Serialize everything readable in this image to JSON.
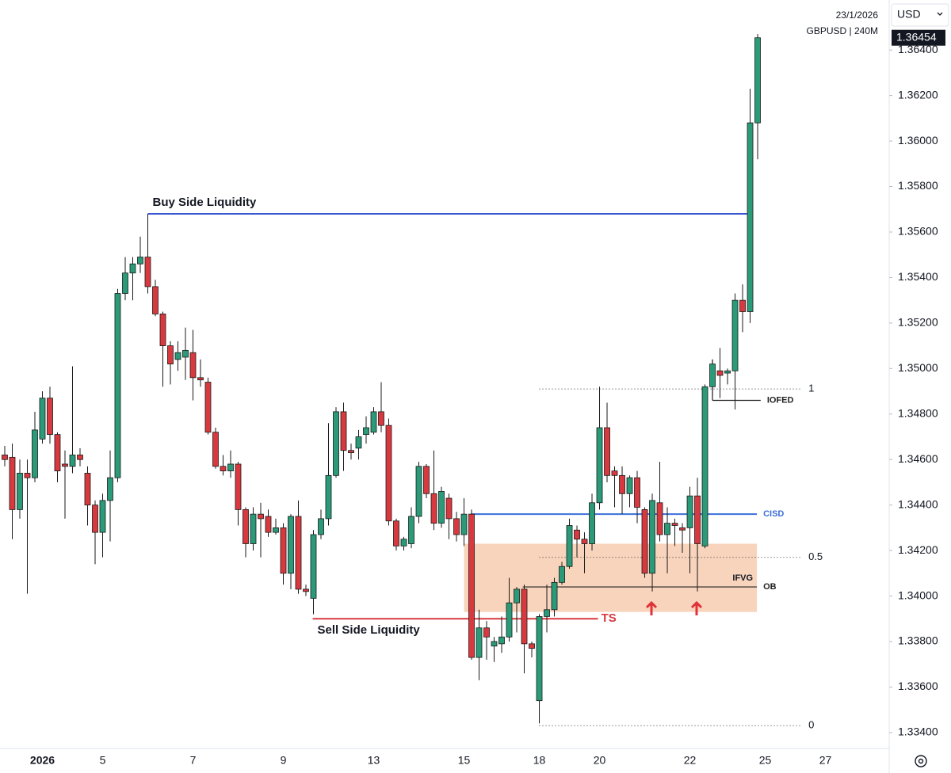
{
  "header": {
    "date": "23/1/2026",
    "symbol": "GBPUSD | 240M",
    "currency": "USD"
  },
  "chart_data": {
    "type": "candlestick",
    "up_color": "#2a9a78",
    "down_color": "#d8393f",
    "open": [
      1.3462,
      1.3461,
      1.3438,
      1.3454,
      1.3452,
      1.3469,
      1.3487,
      1.3471,
      1.3458,
      1.3457,
      1.3462,
      1.3454,
      1.344,
      1.3428,
      1.3442,
      1.3452,
      1.3533,
      1.3542,
      1.3546,
      1.3549,
      1.3536,
      1.3524,
      1.351,
      1.3504,
      1.3505,
      1.3507,
      1.3496,
      1.3494,
      1.3472,
      1.3457,
      1.3455,
      1.3458,
      1.3438,
      1.3423,
      1.3436,
      1.3435,
      1.3428,
      1.343,
      1.341,
      1.3435,
      1.3403,
      1.3399,
      1.3427,
      1.3434,
      1.3453,
      1.3481,
      1.3464,
      1.3465,
      1.3471,
      1.3472,
      1.3481,
      1.3475,
      1.3433,
      1.3422,
      1.3423,
      1.3435,
      1.3457,
      1.3445,
      1.3432,
      1.3443,
      1.3434,
      1.3427,
      1.3436,
      1.3373,
      1.3386,
      1.3378,
      1.3379,
      1.3382,
      1.3397,
      1.3403,
      1.3379,
      1.3354,
      1.3391,
      1.3394,
      1.3406,
      1.3413,
      1.3429,
      1.3425,
      1.3423,
      1.3441,
      1.3474,
      1.3455,
      1.3453,
      1.3445,
      1.3452,
      1.3438,
      1.341,
      1.3441,
      1.3427,
      1.3432,
      1.343,
      1.343,
      1.3444,
      1.3422,
      1.3492,
      1.3499,
      1.3498,
      1.3499,
      1.353,
      1.3525,
      1.3608
    ],
    "high": [
      1.3466,
      1.3467,
      1.346,
      1.346,
      1.3481,
      1.349,
      1.3492,
      1.3472,
      1.3464,
      1.3501,
      1.3465,
      1.3457,
      1.3442,
      1.3445,
      1.3464,
      1.3535,
      1.3549,
      1.3549,
      1.3558,
      1.3568,
      1.3539,
      1.3525,
      1.3512,
      1.3512,
      1.3518,
      1.3517,
      1.3504,
      1.3496,
      1.3474,
      1.3462,
      1.3464,
      1.3459,
      1.3439,
      1.3439,
      1.3441,
      1.3438,
      1.3434,
      1.3432,
      1.3436,
      1.3442,
      1.3405,
      1.3429,
      1.3438,
      1.3476,
      1.3483,
      1.3485,
      1.3467,
      1.3473,
      1.3479,
      1.3483,
      1.3494,
      1.3478,
      1.3434,
      1.3426,
      1.3439,
      1.3459,
      1.3458,
      1.3464,
      1.3448,
      1.3445,
      1.3437,
      1.3443,
      1.3438,
      1.3394,
      1.3389,
      1.3382,
      1.3391,
      1.3408,
      1.3404,
      1.3405,
      1.338,
      1.3392,
      1.3405,
      1.3408,
      1.3415,
      1.3434,
      1.3431,
      1.3428,
      1.3445,
      1.3492,
      1.3485,
      1.3457,
      1.3457,
      1.3453,
      1.3455,
      1.3439,
      1.3445,
      1.3459,
      1.3439,
      1.3434,
      1.3432,
      1.3448,
      1.3452,
      1.3493,
      1.3504,
      1.3509,
      1.35,
      1.3533,
      1.3537,
      1.3623,
      1.3647
    ],
    "low": [
      1.3457,
      1.3425,
      1.3434,
      1.3401,
      1.345,
      1.3467,
      1.3467,
      1.345,
      1.3434,
      1.3454,
      1.3457,
      1.3431,
      1.3414,
      1.3417,
      1.3424,
      1.345,
      1.353,
      1.353,
      1.3542,
      1.3533,
      1.3523,
      1.3492,
      1.3493,
      1.3499,
      1.3495,
      1.3486,
      1.3492,
      1.3471,
      1.3456,
      1.3453,
      1.3452,
      1.3431,
      1.3417,
      1.342,
      1.3417,
      1.3426,
      1.3427,
      1.3405,
      1.3403,
      1.3401,
      1.34,
      1.3392,
      1.3425,
      1.3431,
      1.3452,
      1.3455,
      1.346,
      1.346,
      1.3467,
      1.3471,
      1.3472,
      1.3431,
      1.342,
      1.342,
      1.3421,
      1.3432,
      1.3443,
      1.3429,
      1.343,
      1.3425,
      1.3424,
      1.3422,
      1.3372,
      1.3363,
      1.3372,
      1.3371,
      1.3375,
      1.338,
      1.3384,
      1.3366,
      1.3373,
      1.3344,
      1.3384,
      1.3391,
      1.3405,
      1.3412,
      1.3417,
      1.341,
      1.342,
      1.3438,
      1.345,
      1.3439,
      1.3436,
      1.3439,
      1.3432,
      1.3408,
      1.3402,
      1.3424,
      1.341,
      1.3422,
      1.3419,
      1.341,
      1.3402,
      1.3421,
      1.3488,
      1.3487,
      1.3493,
      1.3482,
      1.3516,
      1.352,
      1.3592
    ],
    "close": [
      1.346,
      1.3438,
      1.3454,
      1.3452,
      1.3473,
      1.3487,
      1.3471,
      1.3455,
      1.3457,
      1.3462,
      1.346,
      1.344,
      1.3428,
      1.3442,
      1.3452,
      1.3533,
      1.3542,
      1.3546,
      1.3549,
      1.3536,
      1.3524,
      1.351,
      1.3502,
      1.3507,
      1.3508,
      1.3496,
      1.3495,
      1.3472,
      1.3457,
      1.3455,
      1.3458,
      1.3438,
      1.3423,
      1.3436,
      1.3434,
      1.3428,
      1.343,
      1.341,
      1.3435,
      1.3403,
      1.3402,
      1.3427,
      1.3434,
      1.3453,
      1.3481,
      1.3464,
      1.3463,
      1.347,
      1.3474,
      1.3481,
      1.3475,
      1.3433,
      1.3422,
      1.3425,
      1.3435,
      1.3457,
      1.3445,
      1.3432,
      1.3446,
      1.3434,
      1.3427,
      1.3436,
      1.3373,
      1.3386,
      1.3382,
      1.338,
      1.3382,
      1.3397,
      1.3403,
      1.3379,
      1.3377,
      1.3391,
      1.3394,
      1.3406,
      1.3413,
      1.3431,
      1.3425,
      1.3423,
      1.3441,
      1.3474,
      1.3453,
      1.3453,
      1.3445,
      1.3452,
      1.3439,
      1.341,
      1.3442,
      1.3427,
      1.3432,
      1.3431,
      1.3429,
      1.3444,
      1.3423,
      1.3492,
      1.3502,
      1.3497,
      1.3499,
      1.353,
      1.3525,
      1.3608,
      1.36454
    ],
    "xlim": [
      -0.63,
      117.47
    ],
    "xticks": [
      {
        "value": 5,
        "label": "2026"
      },
      {
        "value": 13,
        "label": "5"
      },
      {
        "value": 25,
        "label": "7"
      },
      {
        "value": 37,
        "label": "9"
      },
      {
        "value": 49,
        "label": "13"
      },
      {
        "value": 61,
        "label": "15"
      },
      {
        "value": 71,
        "label": "18"
      },
      {
        "value": 79,
        "label": "20"
      },
      {
        "value": 91,
        "label": "22"
      },
      {
        "value": 101,
        "label": "25"
      },
      {
        "value": 109,
        "label": "27"
      }
    ],
    "ylim": [
      1.3333,
      1.3662
    ],
    "yticks": [
      {
        "value": 1.334,
        "label": "1.33400"
      },
      {
        "value": 1.336,
        "label": "1.33600"
      },
      {
        "value": 1.338,
        "label": "1.33800"
      },
      {
        "value": 1.34,
        "label": "1.34000"
      },
      {
        "value": 1.342,
        "label": "1.34200"
      },
      {
        "value": 1.344,
        "label": "1.34400"
      },
      {
        "value": 1.346,
        "label": "1.34600"
      },
      {
        "value": 1.348,
        "label": "1.34800"
      },
      {
        "value": 1.35,
        "label": "1.35000"
      },
      {
        "value": 1.352,
        "label": "1.35200"
      },
      {
        "value": 1.354,
        "label": "1.35400"
      },
      {
        "value": 1.356,
        "label": "1.35600"
      },
      {
        "value": 1.358,
        "label": "1.35800"
      },
      {
        "value": 1.36,
        "label": "1.36000"
      },
      {
        "value": 1.362,
        "label": "1.36200"
      },
      {
        "value": 1.364,
        "label": "1.36400"
      }
    ],
    "annotations": {
      "zone": {
        "top": 1.3423,
        "bottom": 1.3393,
        "from": 61,
        "to": 99.9,
        "color": "#f7cdb0"
      },
      "lines": [
        {
          "label": "Buy Side Liquidity",
          "level": 1.3568,
          "from": 19,
          "to": 98.6,
          "color": "#3b57d1"
        },
        {
          "label": "Sell Side Liquidity",
          "tag": "TS",
          "level": 1.339,
          "from": 40.9,
          "to": 78.8,
          "color": "#d8393f"
        },
        {
          "label": "CISD",
          "level": 1.3436,
          "from": 61.9,
          "to": 99.9,
          "color": "#3b6fd9"
        },
        {
          "label": "OB",
          "level": 1.3404,
          "from": 68.8,
          "to": 99.9,
          "color": "#222222"
        },
        {
          "label": "IOFED",
          "level": 1.3486,
          "from": 94,
          "to": 100.4,
          "color": "#222222"
        }
      ],
      "ifvg": "IFVG",
      "fib": [
        {
          "ratio": 1,
          "level": 1.3491
        },
        {
          "ratio": 0.5,
          "level": 1.3417
        },
        {
          "ratio": 0,
          "level": 1.3343
        }
      ],
      "fib_from": 71,
      "fib_to": 105.9
    }
  }
}
